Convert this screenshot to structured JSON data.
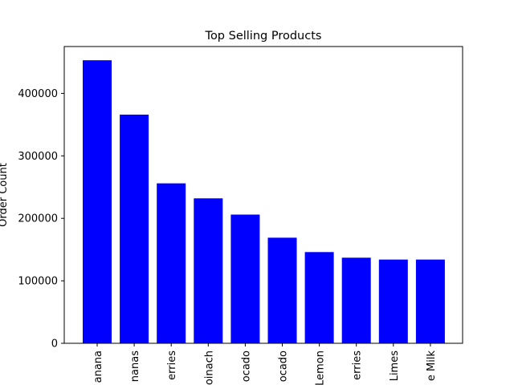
{
  "chart_data": {
    "type": "bar",
    "title": "Top Selling Products",
    "xlabel": "",
    "ylabel": "Order Count",
    "categories": [
      "anana",
      "nanas",
      "erries",
      "oinach",
      "ocado",
      "ocado",
      "Lemon",
      "erries",
      "Limes",
      "e Milk"
    ],
    "values": [
      453000,
      366000,
      256000,
      232000,
      206000,
      169000,
      146000,
      137000,
      134000,
      134000
    ],
    "ylim": [
      0,
      475000
    ],
    "yticks": [
      0,
      100000,
      200000,
      300000,
      400000
    ],
    "ytick_labels": [
      "0",
      "100000",
      "200000",
      "300000",
      "400000"
    ],
    "bar_color": "#0000ff",
    "grid": false,
    "legend": "none"
  }
}
